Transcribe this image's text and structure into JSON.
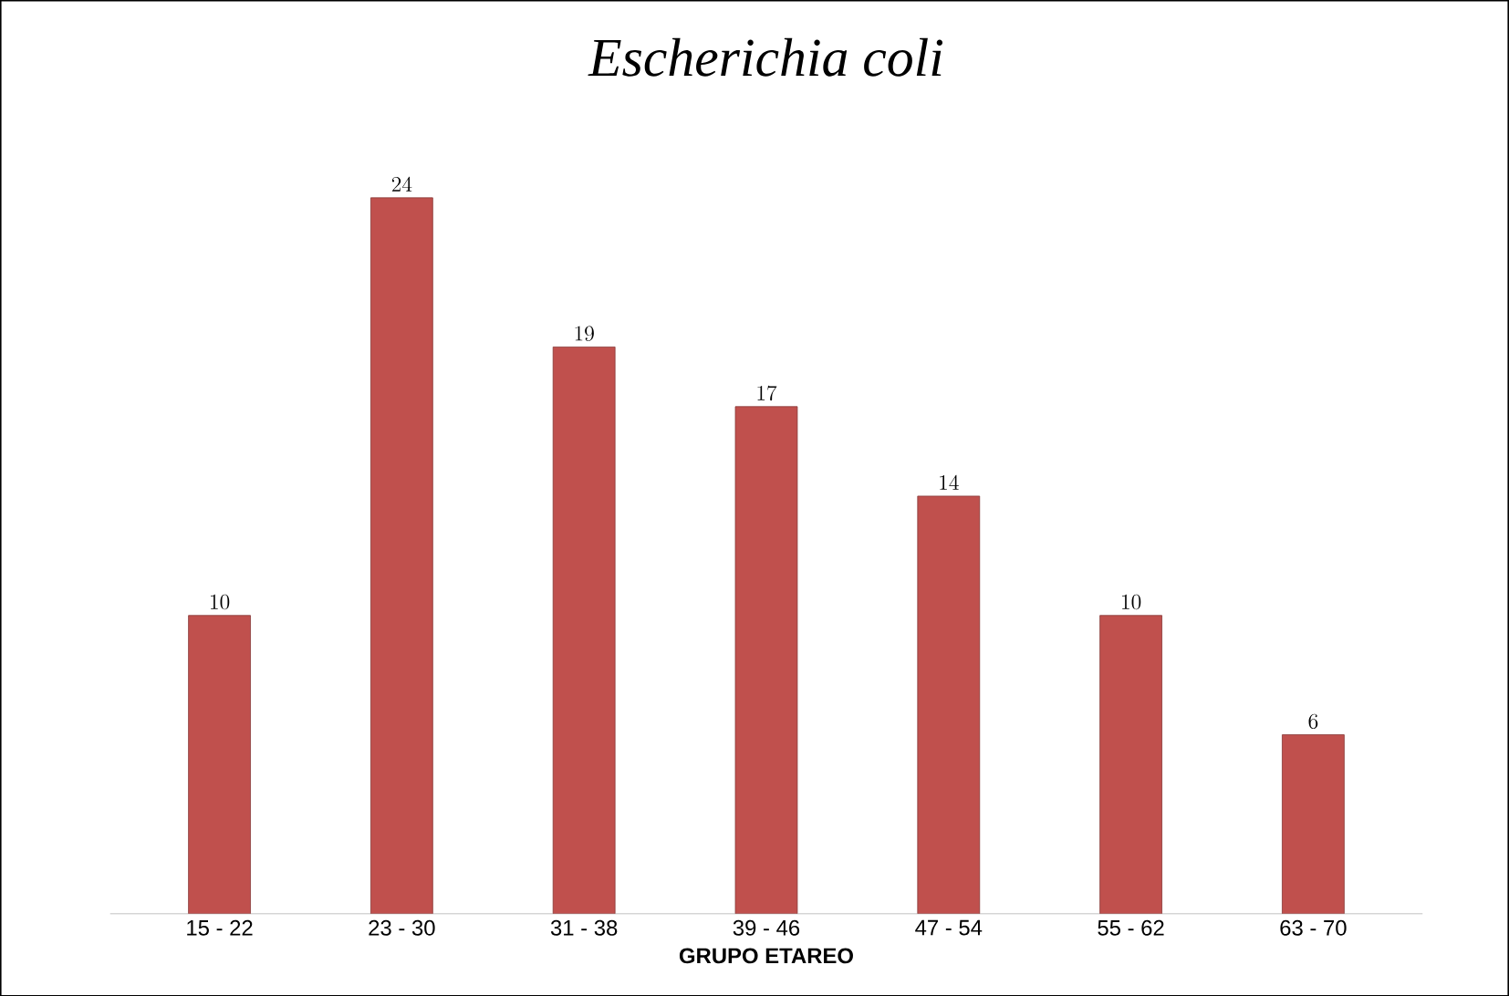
{
  "chart_data": {
    "type": "bar",
    "title": "Escherichia coli",
    "xlabel": "GRUPO ETAREO",
    "categories": [
      "15 - 22",
      "23 - 30",
      "31 - 38",
      "39 - 46",
      "47 - 54",
      "55 - 62",
      "63 - 70"
    ],
    "values": [
      10,
      24,
      19,
      17,
      14,
      10,
      6
    ],
    "color": "#c0504d",
    "data_labels": true
  }
}
